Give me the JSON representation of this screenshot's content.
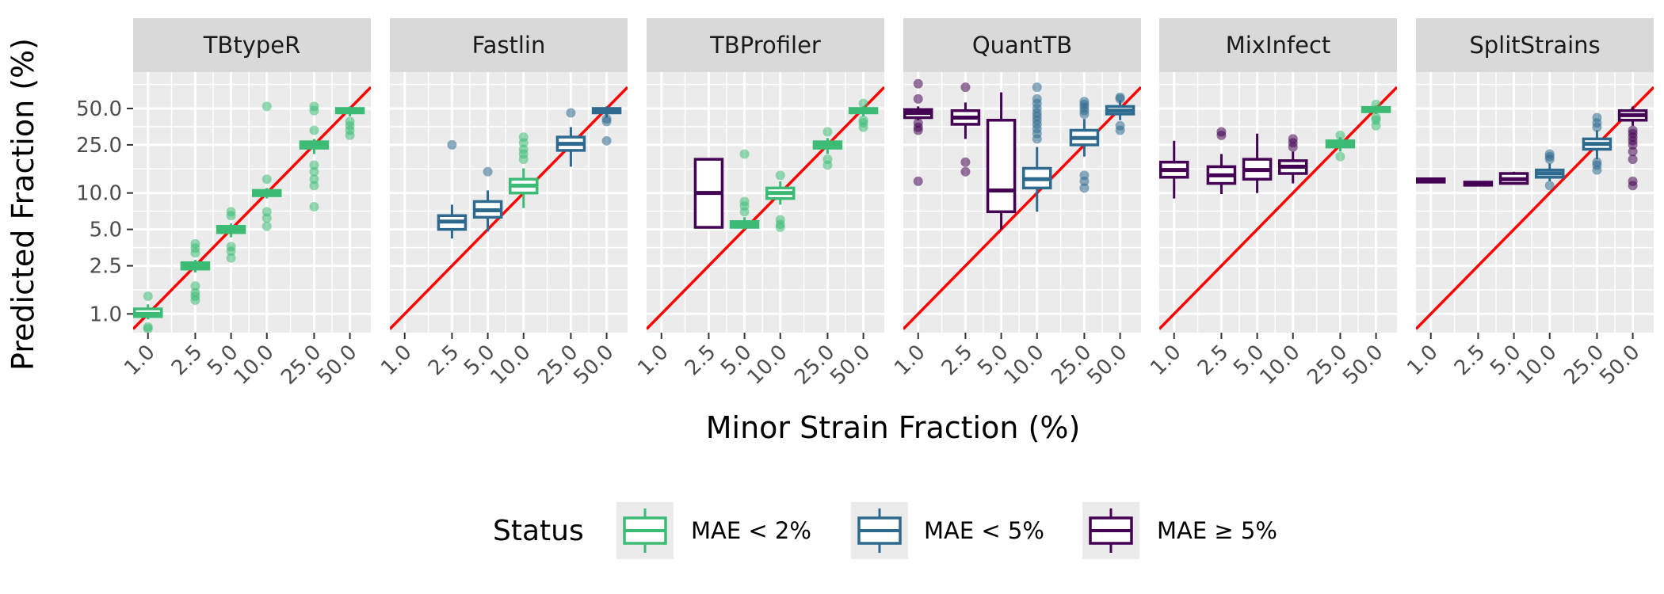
{
  "chart_data": {
    "type": "boxplot",
    "facet_layout": "1 row x 6 columns",
    "xlabel": "Minor Strain Fraction (%)",
    "ylabel": "Predicted Fraction (%)",
    "x_scale": "log10",
    "y_scale": "log10",
    "x_ticks": [
      1.0,
      2.5,
      5.0,
      10.0,
      25.0,
      50.0
    ],
    "x_tick_labels": [
      "1.0",
      "2.5",
      "5.0",
      "10.0",
      "25.0",
      "50.0"
    ],
    "y_ticks": [
      1.0,
      2.5,
      5.0,
      10.0,
      25.0,
      50.0
    ],
    "y_tick_labels": [
      "1.0",
      "2.5",
      "5.0",
      "10.0",
      "25.0",
      "50.0"
    ],
    "xlim": [
      0.75,
      75
    ],
    "ylim": [
      0.7,
      100
    ],
    "reference_line": "y = x",
    "reference_line_color": "#ff0000",
    "grid": true,
    "legend": {
      "title": "Status",
      "position": "bottom",
      "entries": [
        {
          "key": "lt2",
          "label": "MAE < 2%",
          "color": "#3cbb75"
        },
        {
          "key": "lt5",
          "label": "MAE < 5%",
          "color": "#2d6a8e"
        },
        {
          "key": "ge5",
          "label": "MAE ≥ 5%",
          "color": "#440154"
        }
      ]
    },
    "facets": [
      {
        "name": "TBtypeR",
        "groups": [
          {
            "x": 1.0,
            "status": "lt2",
            "q1": 0.95,
            "median": 1.0,
            "q3": 1.1,
            "lo": 0.9,
            "hi": 1.2,
            "outliers": [
              0.75,
              0.78,
              1.4
            ]
          },
          {
            "x": 2.5,
            "status": "lt2",
            "q1": 2.35,
            "median": 2.5,
            "q3": 2.65,
            "lo": 2.2,
            "hi": 2.8,
            "outliers": [
              1.3,
              1.4,
              1.5,
              1.7,
              3.2,
              3.5,
              3.8
            ]
          },
          {
            "x": 5.0,
            "status": "lt2",
            "q1": 4.7,
            "median": 5.0,
            "q3": 5.3,
            "lo": 4.3,
            "hi": 5.6,
            "outliers": [
              2.9,
              3.3,
              3.6,
              6.5,
              7.0
            ]
          },
          {
            "x": 10.0,
            "status": "lt2",
            "q1": 9.5,
            "median": 10.0,
            "q3": 10.5,
            "lo": 9.0,
            "hi": 11.0,
            "outliers": [
              5.3,
              6.2,
              7.0,
              13.0,
              52.0
            ]
          },
          {
            "x": 25.0,
            "status": "lt2",
            "q1": 23.5,
            "median": 25.0,
            "q3": 26.5,
            "lo": 21.0,
            "hi": 28.0,
            "outliers": [
              7.7,
              11.5,
              13.0,
              15.0,
              17.0,
              33.0,
              48.0,
              52.0
            ]
          },
          {
            "x": 50.0,
            "status": "lt2",
            "q1": 46.0,
            "median": 48.0,
            "q3": 50.0,
            "lo": 43.0,
            "hi": 52.0,
            "outliers": [
              30.0,
              33.0,
              36.0,
              39.0
            ]
          }
        ]
      },
      {
        "name": "Fastlin",
        "groups": [
          {
            "x": 2.5,
            "status": "lt5",
            "q1": 5.0,
            "median": 5.8,
            "q3": 6.5,
            "lo": 4.2,
            "hi": 8.0,
            "outliers": [
              25.0
            ]
          },
          {
            "x": 5.0,
            "status": "lt5",
            "q1": 6.3,
            "median": 7.2,
            "q3": 8.5,
            "lo": 4.8,
            "hi": 10.5,
            "outliers": [
              15.0
            ]
          },
          {
            "x": 10.0,
            "status": "lt2",
            "q1": 10.0,
            "median": 11.5,
            "q3": 13.0,
            "lo": 7.5,
            "hi": 16.0,
            "outliers": [
              19.0,
              21.0,
              23.0,
              26.0,
              29.0
            ]
          },
          {
            "x": 25.0,
            "status": "lt5",
            "q1": 22.5,
            "median": 25.5,
            "q3": 29.0,
            "lo": 16.5,
            "hi": 35.0,
            "outliers": [
              46.0
            ]
          },
          {
            "x": 50.0,
            "status": "lt5",
            "q1": 46.0,
            "median": 48.0,
            "q3": 50.0,
            "lo": 42.0,
            "hi": 52.0,
            "outliers": [
              27.0,
              39.0,
              41.0
            ]
          }
        ]
      },
      {
        "name": "TBProfiler",
        "groups": [
          {
            "x": 2.5,
            "status": "ge5",
            "q1": 5.2,
            "median": 10.0,
            "q3": 19.0,
            "lo": 5.2,
            "hi": 19.0,
            "outliers": []
          },
          {
            "x": 5.0,
            "status": "lt2",
            "q1": 5.2,
            "median": 5.5,
            "q3": 5.8,
            "lo": 5.0,
            "hi": 6.3,
            "outliers": [
              7.0,
              7.8,
              8.5,
              21.0
            ]
          },
          {
            "x": 10.0,
            "status": "lt2",
            "q1": 9.0,
            "median": 10.0,
            "q3": 11.0,
            "lo": 8.0,
            "hi": 12.5,
            "outliers": [
              5.2,
              5.5,
              6.0,
              14.0
            ]
          },
          {
            "x": 25.0,
            "status": "lt2",
            "q1": 23.5,
            "median": 25.0,
            "q3": 26.5,
            "lo": 21.0,
            "hi": 28.5,
            "outliers": [
              17.0,
              19.0,
              32.0
            ]
          },
          {
            "x": 50.0,
            "status": "lt2",
            "q1": 46.0,
            "median": 48.0,
            "q3": 50.0,
            "lo": 43.0,
            "hi": 52.0,
            "outliers": [
              35.0,
              38.0,
              40.0,
              55.0
            ]
          }
        ]
      },
      {
        "name": "QuantTB",
        "groups": [
          {
            "x": 1.0,
            "status": "ge5",
            "q1": 42.0,
            "median": 46.0,
            "q3": 49.0,
            "lo": 40.0,
            "hi": 52.0,
            "outliers": [
              12.5,
              33.0,
              35.0,
              38.0,
              60.0,
              80.0
            ]
          },
          {
            "x": 2.5,
            "status": "ge5",
            "q1": 37.0,
            "median": 42.0,
            "q3": 48.0,
            "lo": 28.0,
            "hi": 56.0,
            "outliers": [
              15.0,
              18.0,
              75.0
            ]
          },
          {
            "x": 5.0,
            "status": "ge5",
            "q1": 7.0,
            "median": 10.5,
            "q3": 40.0,
            "lo": 5.0,
            "hi": 68.0,
            "outliers": []
          },
          {
            "x": 10.0,
            "status": "lt5",
            "q1": 11.0,
            "median": 13.0,
            "q3": 16.0,
            "lo": 7.0,
            "hi": 24.0,
            "outliers": [
              28.0,
              31.0,
              34.0,
              37.0,
              40.0,
              43.0,
              46.0,
              50.0,
              55.0,
              60.0,
              75.0
            ]
          },
          {
            "x": 25.0,
            "status": "lt5",
            "q1": 25.0,
            "median": 28.5,
            "q3": 33.0,
            "lo": 20.0,
            "hi": 41.0,
            "outliers": [
              11.0,
              12.5,
              14.0,
              45.0,
              48.0,
              51.0,
              54.0,
              57.0
            ]
          },
          {
            "x": 50.0,
            "status": "lt5",
            "q1": 45.0,
            "median": 48.0,
            "q3": 52.0,
            "lo": 40.0,
            "hi": 58.0,
            "outliers": [
              33.0,
              36.0,
              60.0,
              62.0
            ]
          }
        ]
      },
      {
        "name": "MixInfect",
        "groups": [
          {
            "x": 1.0,
            "status": "ge5",
            "q1": 13.5,
            "median": 15.5,
            "q3": 18.0,
            "lo": 9.0,
            "hi": 27.0,
            "outliers": []
          },
          {
            "x": 2.5,
            "status": "ge5",
            "q1": 12.0,
            "median": 14.0,
            "q3": 16.5,
            "lo": 9.8,
            "hi": 21.0,
            "outliers": [
              30.0,
              32.0
            ]
          },
          {
            "x": 5.0,
            "status": "ge5",
            "q1": 13.0,
            "median": 15.5,
            "q3": 19.0,
            "lo": 10.0,
            "hi": 31.0,
            "outliers": []
          },
          {
            "x": 10.0,
            "status": "ge5",
            "q1": 14.5,
            "median": 16.5,
            "q3": 18.5,
            "lo": 12.0,
            "hi": 22.0,
            "outliers": [
              24.0,
              26.0,
              28.0
            ]
          },
          {
            "x": 25.0,
            "status": "lt2",
            "q1": 24.0,
            "median": 25.5,
            "q3": 27.0,
            "lo": 22.0,
            "hi": 29.0,
            "outliers": [
              20.0,
              30.0
            ]
          },
          {
            "x": 50.0,
            "status": "lt2",
            "q1": 47.0,
            "median": 49.0,
            "q3": 51.0,
            "lo": 45.0,
            "hi": 53.0,
            "outliers": [
              36.0,
              40.0,
              42.0,
              54.0
            ]
          }
        ]
      },
      {
        "name": "SplitStrains",
        "groups": [
          {
            "x": 1.0,
            "status": "ge5",
            "q1": 12.3,
            "median": 12.7,
            "q3": 13.1,
            "lo": 12.3,
            "hi": 13.1,
            "outliers": []
          },
          {
            "x": 2.5,
            "status": "ge5",
            "q1": 11.6,
            "median": 12.0,
            "q3": 12.3,
            "lo": 11.6,
            "hi": 12.3,
            "outliers": []
          },
          {
            "x": 5.0,
            "status": "ge5",
            "q1": 12.0,
            "median": 13.0,
            "q3": 14.5,
            "lo": 11.8,
            "hi": 15.0,
            "outliers": []
          },
          {
            "x": 10.0,
            "status": "lt5",
            "q1": 13.5,
            "median": 14.5,
            "q3": 15.5,
            "lo": 12.5,
            "hi": 17.5,
            "outliers": [
              11.5,
              19.0,
              20.0,
              21.0
            ]
          },
          {
            "x": 25.0,
            "status": "lt5",
            "q1": 23.0,
            "median": 25.5,
            "q3": 28.0,
            "lo": 19.0,
            "hi": 33.0,
            "outliers": [
              15.5,
              17.0,
              18.0,
              35.0,
              38.0,
              42.0
            ]
          },
          {
            "x": 50.0,
            "status": "ge5",
            "q1": 40.0,
            "median": 44.0,
            "q3": 48.0,
            "lo": 36.0,
            "hi": 52.0,
            "outliers": [
              11.5,
              12.5,
              19.0,
              22.0,
              25.0,
              27.0,
              29.0,
              31.0,
              33.0
            ]
          }
        ]
      }
    ]
  }
}
